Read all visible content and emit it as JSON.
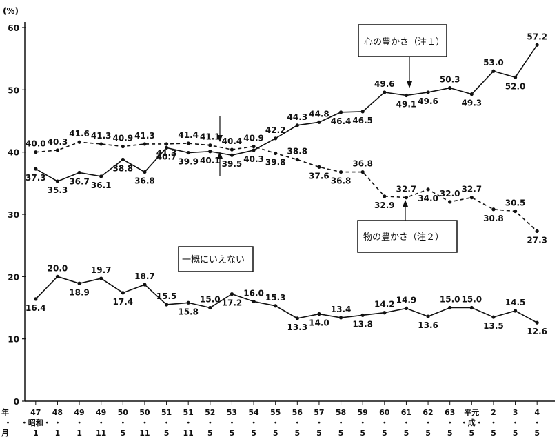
{
  "chart_data": {
    "type": "line",
    "y_unit": "(%)",
    "ylim": [
      0,
      60
    ],
    "yticks": [
      "0",
      "10",
      "20",
      "30",
      "40",
      "50",
      "60"
    ],
    "x_header": {
      "year": "年",
      "era": "・",
      "month": "月"
    },
    "x": [
      {
        "year": "47",
        "era": "・昭和・",
        "month": "1"
      },
      {
        "year": "48",
        "era": "・",
        "month": "1"
      },
      {
        "year": "49",
        "era": "・",
        "month": "1"
      },
      {
        "year": "49",
        "era": "・",
        "month": "11"
      },
      {
        "year": "50",
        "era": "・",
        "month": "5"
      },
      {
        "year": "50",
        "era": "・",
        "month": "11"
      },
      {
        "year": "51",
        "era": "・",
        "month": "5"
      },
      {
        "year": "51",
        "era": "・",
        "month": "11"
      },
      {
        "year": "52",
        "era": "・",
        "month": "5"
      },
      {
        "year": "53",
        "era": "・",
        "month": "5"
      },
      {
        "year": "54",
        "era": "・",
        "month": "5"
      },
      {
        "year": "55",
        "era": "・",
        "month": "5"
      },
      {
        "year": "56",
        "era": "・",
        "month": "5"
      },
      {
        "year": "57",
        "era": "・",
        "month": "5"
      },
      {
        "year": "58",
        "era": "・",
        "month": "5"
      },
      {
        "year": "59",
        "era": "・",
        "month": "5"
      },
      {
        "year": "60",
        "era": "・",
        "month": "5"
      },
      {
        "year": "61",
        "era": "・",
        "month": "5"
      },
      {
        "year": "62",
        "era": "・",
        "month": "5"
      },
      {
        "year": "63",
        "era": "・",
        "month": "5"
      },
      {
        "year": "平元",
        "era": "・成・",
        "month": "5"
      },
      {
        "year": "2",
        "era": "・",
        "month": "5"
      },
      {
        "year": "3",
        "era": "・",
        "month": "5"
      },
      {
        "year": "4",
        "era": "・",
        "month": "5"
      }
    ],
    "series": [
      {
        "name": "心の豊かさ（注１）",
        "style": "solid",
        "values": [
          37.3,
          35.3,
          36.7,
          36.1,
          38.8,
          36.8,
          40.7,
          39.9,
          40.1,
          39.5,
          40.3,
          42.2,
          44.3,
          44.8,
          46.4,
          46.5,
          49.6,
          49.1,
          49.6,
          50.3,
          49.3,
          53.0,
          52.0,
          57.2
        ]
      },
      {
        "name": "物の豊かさ（注２）",
        "style": "dashed",
        "values": [
          40.0,
          40.3,
          41.6,
          41.3,
          40.9,
          41.3,
          41.3,
          41.4,
          41.1,
          40.4,
          40.9,
          39.8,
          38.8,
          37.6,
          36.8,
          36.8,
          32.9,
          32.7,
          34.0,
          32.0,
          32.7,
          30.8,
          30.5,
          27.3
        ]
      },
      {
        "name": "一概にいえない",
        "style": "solid",
        "values": [
          16.4,
          20.0,
          18.9,
          19.7,
          17.4,
          18.7,
          15.5,
          15.8,
          15.0,
          17.2,
          16.0,
          15.3,
          13.3,
          14.0,
          13.4,
          13.8,
          14.2,
          14.9,
          13.6,
          15.0,
          15.0,
          13.5,
          14.5,
          12.6
        ]
      }
    ],
    "color": "#111111"
  }
}
